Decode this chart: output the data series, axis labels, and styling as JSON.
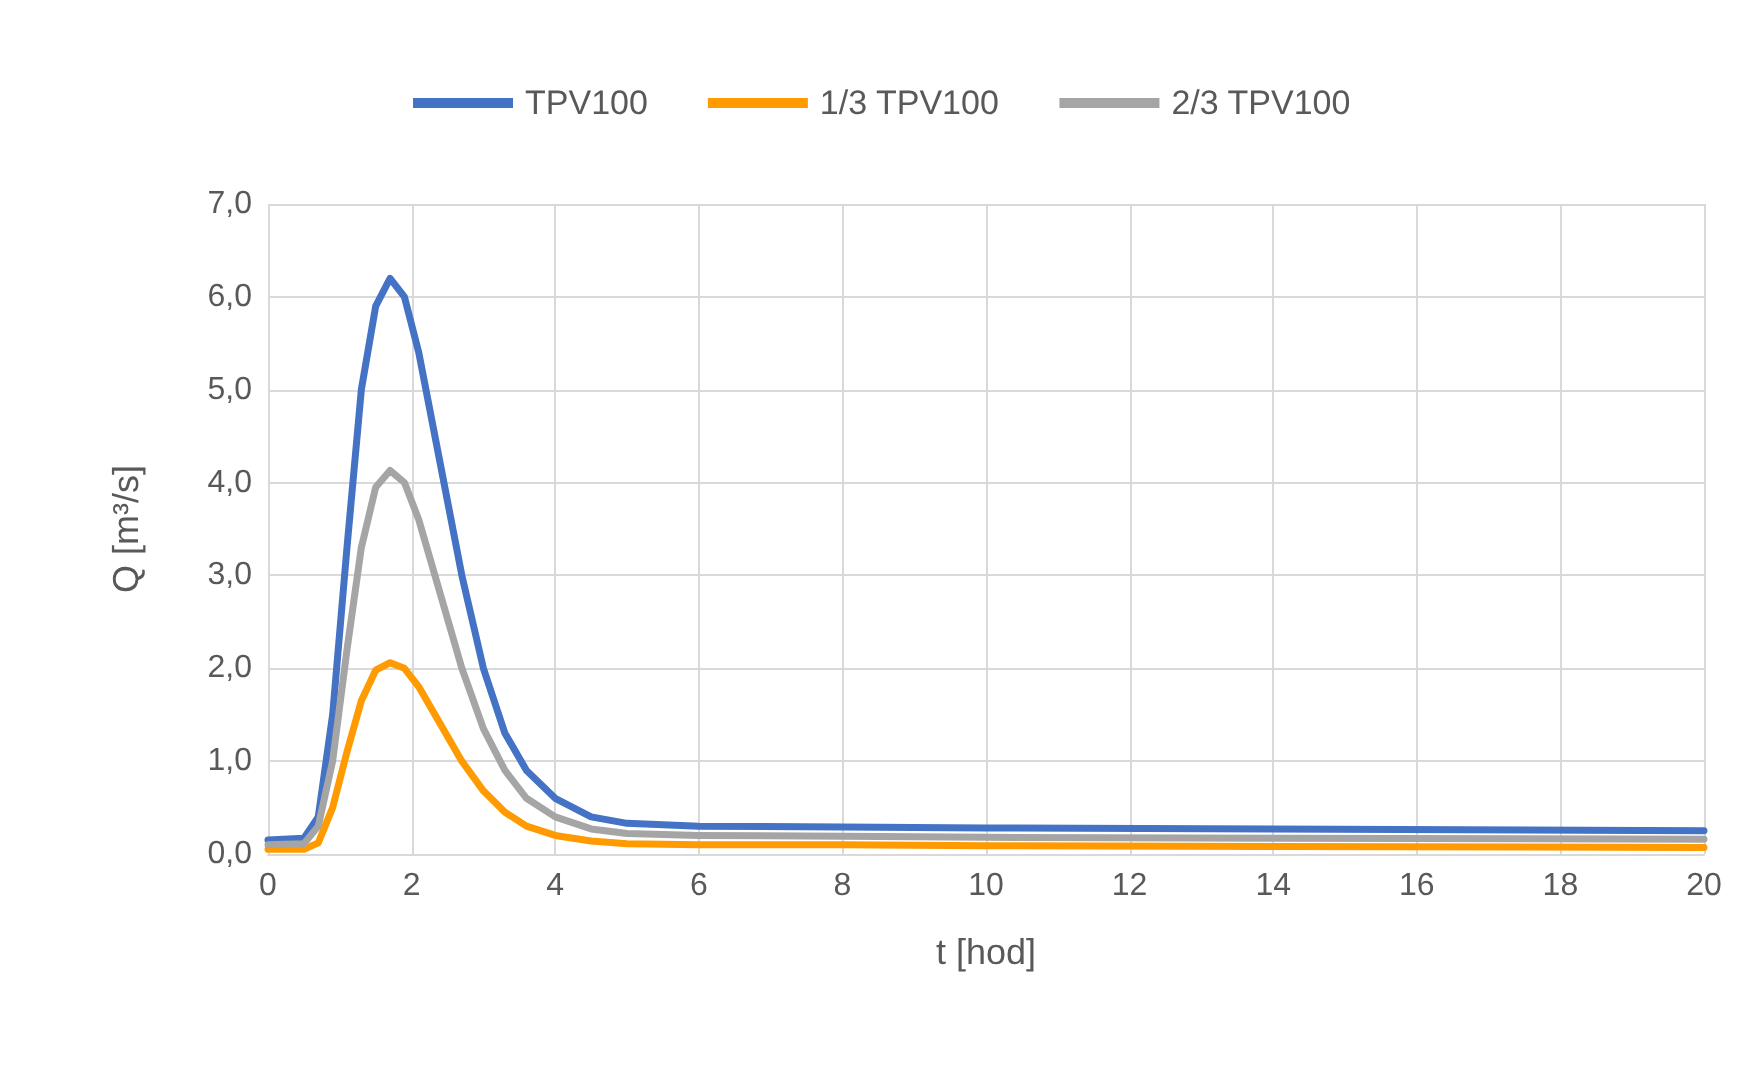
{
  "chart_data": {
    "type": "line",
    "xlabel": "t [hod]",
    "ylabel": "Q [m³/s]",
    "x": [
      0,
      0.5,
      0.7,
      0.9,
      1.1,
      1.3,
      1.5,
      1.7,
      1.9,
      2.1,
      2.4,
      2.7,
      3.0,
      3.3,
      3.6,
      4.0,
      4.5,
      5,
      6,
      8,
      10,
      14,
      20
    ],
    "series": [
      {
        "name": "TPV100",
        "color": "#4472c4",
        "values": [
          0.15,
          0.17,
          0.4,
          1.5,
          3.3,
          5.0,
          5.9,
          6.2,
          6.0,
          5.4,
          4.2,
          3.0,
          2.0,
          1.3,
          0.9,
          0.6,
          0.4,
          0.33,
          0.3,
          0.29,
          0.28,
          0.27,
          0.25
        ]
      },
      {
        "name": "1/3 TPV100",
        "color": "#ff9a00",
        "values": [
          0.05,
          0.05,
          0.12,
          0.5,
          1.1,
          1.65,
          1.98,
          2.06,
          2.0,
          1.8,
          1.4,
          1.0,
          0.68,
          0.45,
          0.3,
          0.2,
          0.14,
          0.11,
          0.1,
          0.1,
          0.09,
          0.08,
          0.07
        ]
      },
      {
        "name": "2/3 TPV100",
        "color": "#a5a5a5",
        "values": [
          0.1,
          0.11,
          0.3,
          1.0,
          2.2,
          3.3,
          3.95,
          4.13,
          4.0,
          3.6,
          2.8,
          2.0,
          1.35,
          0.9,
          0.6,
          0.4,
          0.27,
          0.22,
          0.2,
          0.19,
          0.18,
          0.17,
          0.16
        ]
      }
    ],
    "xlim": [
      0,
      20
    ],
    "xticks": [
      0,
      2,
      4,
      6,
      8,
      10,
      12,
      14,
      16,
      18,
      20
    ],
    "ylim": [
      0,
      7
    ],
    "yticks": [
      {
        "value": 0,
        "label": "0,0"
      },
      {
        "value": 1,
        "label": "1,0"
      },
      {
        "value": 2,
        "label": "2,0"
      },
      {
        "value": 3,
        "label": "3,0"
      },
      {
        "value": 4,
        "label": "4,0"
      },
      {
        "value": 5,
        "label": "5,0"
      },
      {
        "value": 6,
        "label": "6,0"
      },
      {
        "value": 7,
        "label": "7,0"
      }
    ],
    "grid": true,
    "legend": "top",
    "marker": "none",
    "line_style": "solid"
  }
}
